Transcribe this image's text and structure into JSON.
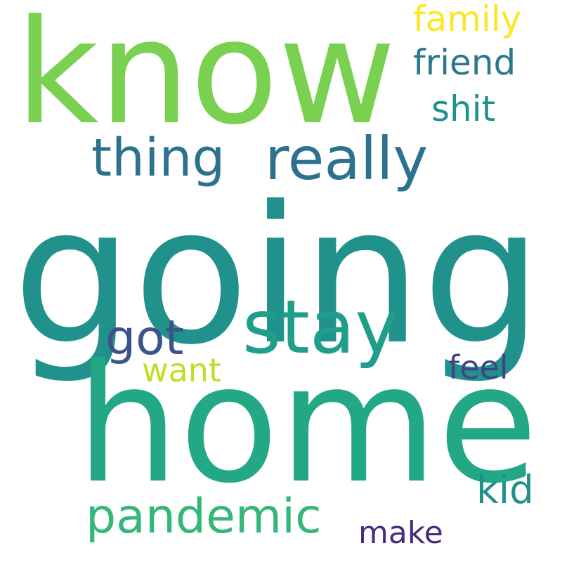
{
  "background_color": "#ffffff",
  "words": {
    "going": {
      "text": "going",
      "color": "#21918c"
    },
    "home": {
      "text": "home",
      "color": "#22a884"
    },
    "know": {
      "text": "know",
      "color": "#7ad151"
    },
    "really": {
      "text": "really",
      "color": "#2c728e"
    },
    "stay": {
      "text": "stay",
      "color": "#1f9e89"
    },
    "thing": {
      "text": "thing",
      "color": "#2c728e"
    },
    "pandemic": {
      "text": "pandemic",
      "color": "#35b779"
    },
    "got": {
      "text": "got",
      "color": "#3b528b"
    },
    "kid": {
      "text": "kid",
      "color": "#21918c"
    },
    "family": {
      "text": "family",
      "color": "#fde725"
    },
    "friend": {
      "text": "friend",
      "color": "#2a788e"
    },
    "shit": {
      "text": "shit",
      "color": "#21918c"
    },
    "feel": {
      "text": "feel",
      "color": "#414487"
    },
    "want": {
      "text": "want",
      "color": "#bddf26"
    },
    "make": {
      "text": "make",
      "color": "#472d7b"
    }
  }
}
